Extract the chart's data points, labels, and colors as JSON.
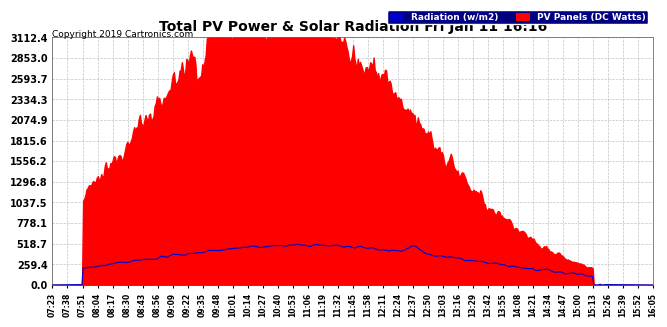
{
  "title": "Total PV Power & Solar Radiation Fri Jan 11 16:16",
  "copyright": "Copyright 2019 Cartronics.com",
  "background_color": "#ffffff",
  "plot_bg_color": "#ffffff",
  "grid_color": "#aaaaaa",
  "yticks": [
    0.0,
    259.4,
    518.7,
    778.1,
    1037.5,
    1296.8,
    1556.2,
    1815.6,
    2074.9,
    2334.3,
    2593.7,
    2853.0,
    3112.4
  ],
  "ymax": 3112.4,
  "legend_labels": [
    "Radiation (w/m2)",
    "PV Panels (DC Watts)"
  ],
  "legend_colors": [
    "#0000ff",
    "#ff0000"
  ],
  "legend_bg": [
    "#0000ff",
    "#ff0000"
  ],
  "pv_color": "#ff0000",
  "rad_color": "#0000cc",
  "time_labels": [
    "07:23",
    "07:38",
    "07:51",
    "08:04",
    "08:17",
    "08:30",
    "08:43",
    "08:56",
    "09:09",
    "09:22",
    "09:35",
    "09:48",
    "10:01",
    "10:14",
    "10:27",
    "10:40",
    "10:53",
    "11:06",
    "11:19",
    "11:32",
    "11:45",
    "11:58",
    "12:11",
    "12:24",
    "12:37",
    "12:50",
    "13:03",
    "13:16",
    "13:29",
    "13:42",
    "13:55",
    "14:08",
    "14:21",
    "14:34",
    "14:47",
    "15:00",
    "15:13",
    "15:26",
    "15:39",
    "15:52",
    "16:05"
  ]
}
